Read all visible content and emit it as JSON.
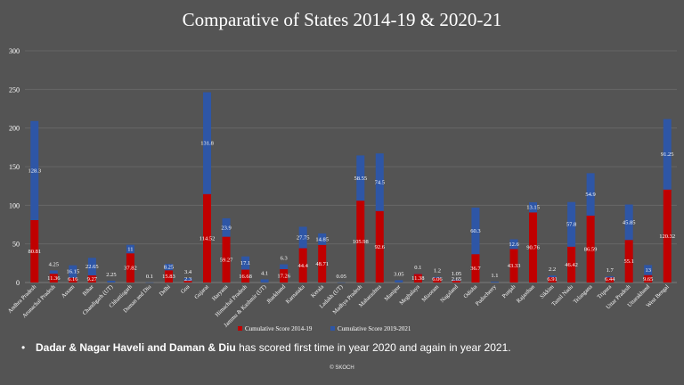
{
  "slide": {
    "note_bold": "Dadar & Nagar Haveli and Daman & Diu",
    "note_rest": " has scored first time in year 2020 and again in year 2021.",
    "footer": "© SKOCH"
  },
  "colors": {
    "background": "#545454",
    "series_2014_19": "#C00000",
    "series_2019_21": "#2E56A6",
    "gridline": "#6a6a6a",
    "text": "#ffffff"
  },
  "chart_data": {
    "type": "bar",
    "stacked": true,
    "title": "Comparative of States 2014-19 & 2020-21",
    "ylim": [
      0,
      300
    ],
    "yticks": [
      0,
      50,
      100,
      150,
      200,
      250,
      300
    ],
    "grid": true,
    "legend_position": "bottom",
    "categories": [
      "Andhra Pradesh",
      "Arunachal Pradesh",
      "Assam",
      "Bihar",
      "Chandigarh (UT)",
      "Chhattisgarh",
      "Daman and Diu",
      "Delhi",
      "Goa",
      "Gujarat",
      "Haryana",
      "Himachal Pradesh",
      "Jammu & Kashmir (UT)",
      "Jharkhand",
      "Karnataka",
      "Kerala",
      "Ladakh (UT)",
      "Madhya Pradesh",
      "Maharashtra",
      "Manipur",
      "Meghalaya",
      "Mizoram",
      "Nagaland",
      "Odisha",
      "Puducherry",
      "Punjab",
      "Rajasthan",
      "Sikkim",
      "Tamil Nadu",
      "Telangana",
      "Tripura",
      "Uttar Pradesh",
      "Uttarakhand",
      "West Bengal"
    ],
    "series": [
      {
        "name": "Cumulative Score 2014-19",
        "labels": [
          "80.81",
          "11.36",
          "6.16",
          "9.27",
          "",
          "37.82",
          "",
          "15.83",
          "2.3",
          "114.52",
          "59.27",
          "16.68",
          "",
          "17.26",
          "44.4",
          "48.71",
          "",
          "105.98",
          "92.6",
          "",
          "11.38",
          "6.06",
          "2.65",
          "36.7",
          "",
          "43.33",
          "90.76",
          "6.91",
          "46.42",
          "86.59",
          "6.44",
          "55.1",
          "9.65",
          "120.32"
        ],
        "values": [
          80.81,
          11.36,
          6.16,
          9.27,
          0,
          37.82,
          0,
          15.83,
          2.3,
          114.52,
          59.27,
          16.68,
          0,
          17.26,
          44.4,
          48.71,
          0,
          105.98,
          92.6,
          0,
          11.38,
          6.06,
          2.65,
          36.7,
          0,
          43.33,
          90.76,
          6.91,
          46.42,
          86.59,
          6.44,
          55.1,
          9.65,
          120.32
        ]
      },
      {
        "name": "Cumulative Score 2019-2021",
        "labels": [
          "128.3",
          "4.25",
          "16.15",
          "22.65",
          "2.25",
          "11",
          "0.1",
          "8.25",
          "3.4",
          "131.8",
          "23.9",
          "17.1",
          "4.1",
          "6.3",
          "27.75",
          "14.85",
          "0.05",
          "58.55",
          "74.5",
          "3.05",
          "0.1",
          "1.2",
          "1.05",
          "60.3",
          "1.1",
          "12.6",
          "13.15",
          "2.2",
          "57.8",
          "54.9",
          "1.7",
          "45.85",
          "13",
          "91.25"
        ],
        "values": [
          128.3,
          4.25,
          16.15,
          22.65,
          2.25,
          11,
          0.1,
          8.25,
          3.4,
          131.8,
          23.9,
          17.1,
          4.1,
          6.3,
          27.75,
          14.85,
          0.05,
          58.55,
          74.5,
          3.05,
          0.1,
          1.2,
          1.05,
          60.3,
          1.1,
          12.6,
          13.15,
          2.2,
          57.8,
          54.9,
          1.7,
          45.85,
          13,
          91.25
        ]
      }
    ]
  }
}
